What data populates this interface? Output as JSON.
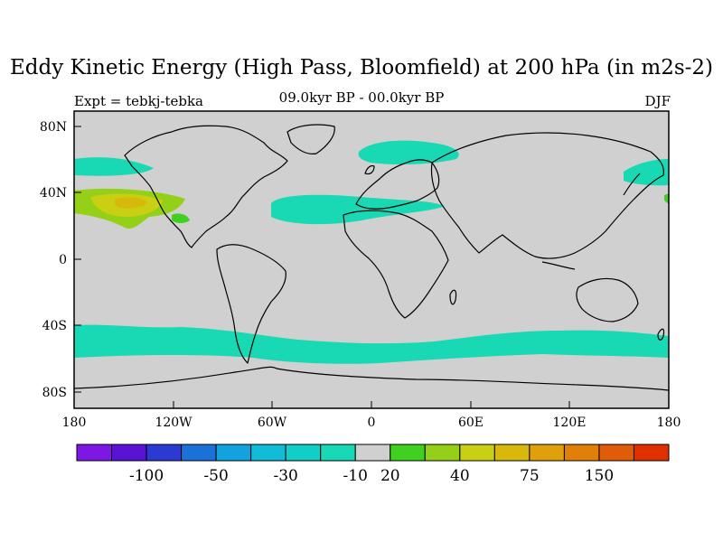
{
  "title": "Eddy Kinetic Energy (High Pass, Bloomfield) at 200 hPa (in m2s-2)",
  "left_label": "Expt = tebkj-tebka",
  "center_label": "09.0kyr BP - 00.0kyr BP",
  "right_label": "DJF",
  "lat_ticks": [
    "80N",
    "40N",
    "0",
    "40S",
    "80S"
  ],
  "lon_ticks": [
    "180",
    "120W",
    "60W",
    "0",
    "60E",
    "120E",
    "180"
  ],
  "colorbar": {
    "colors": [
      "#7e17e6",
      "#5a12d6",
      "#2a3ad2",
      "#1a72d8",
      "#13a2e0",
      "#10bcd8",
      "#11cec8",
      "#19d8b4",
      "#d0d0d0",
      "#3fd020",
      "#93d017",
      "#c9cf12",
      "#d8b80a",
      "#e0a009",
      "#e08008",
      "#e15c08",
      "#e03000"
    ],
    "labels": [
      "-100",
      "-50",
      "-30",
      "-10",
      "20",
      "40",
      "75",
      "150"
    ]
  },
  "chart_data": {
    "type": "map",
    "projection": "equirectangular",
    "lon_range": [
      -180,
      180
    ],
    "lat_range": [
      -90,
      90
    ],
    "contour_fill_regions": [
      {
        "name": "north-pacific-anomaly",
        "range": "-10 to -30",
        "approx_lon": [
          -180,
          -150
        ],
        "approx_lat": [
          48,
          58
        ]
      },
      {
        "name": "north-pacific-positive",
        "range": "20 to 40",
        "approx_lon": [
          -180,
          -125
        ],
        "approx_lat": [
          20,
          45
        ]
      },
      {
        "name": "north-atlantic-band",
        "range": "-10 to -30",
        "approx_lon": [
          -62,
          42
        ],
        "approx_lat": [
          25,
          40
        ]
      },
      {
        "name": "scandinavia-band",
        "range": "-10 to -30",
        "approx_lon": [
          -8,
          52
        ],
        "approx_lat": [
          58,
          70
        ]
      },
      {
        "name": "northwest-pacific",
        "range": "-10 to -30",
        "approx_lon": [
          150,
          180
        ],
        "approx_lat": [
          45,
          60
        ]
      },
      {
        "name": "southern-ocean-band",
        "range": "-10 to -30",
        "approx_lon": [
          -180,
          180
        ],
        "approx_lat": [
          -60,
          -40
        ]
      }
    ]
  }
}
